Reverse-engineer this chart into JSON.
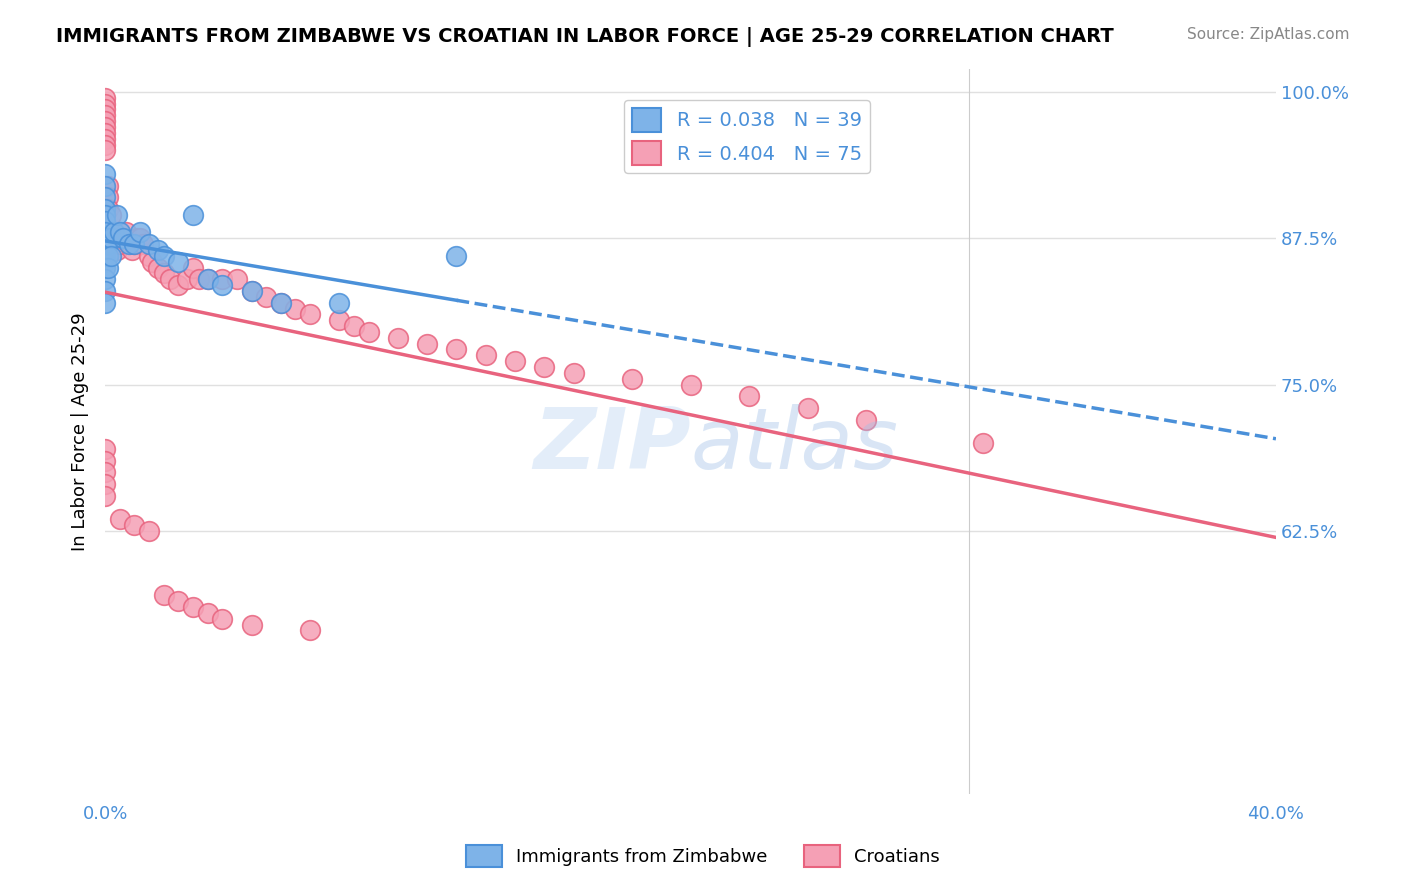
{
  "title": "IMMIGRANTS FROM ZIMBABWE VS CROATIAN IN LABOR FORCE | AGE 25-29 CORRELATION CHART",
  "source": "Source: ZipAtlas.com",
  "xlabel": "",
  "ylabel": "In Labor Force | Age 25-29",
  "legend_label1": "Immigrants from Zimbabwe",
  "legend_label2": "Croatians",
  "r1": 0.038,
  "n1": 39,
  "r2": 0.404,
  "n2": 75,
  "xlim": [
    0.0,
    0.4
  ],
  "ylim": [
    0.4,
    1.02
  ],
  "xticks": [
    0.0,
    0.1,
    0.2,
    0.3,
    0.4
  ],
  "xtick_labels": [
    "0.0%",
    "",
    "",
    "",
    "40.0%"
  ],
  "ytick_positions": [
    1.0,
    0.875,
    0.75,
    0.625
  ],
  "ytick_labels": [
    "100.0%",
    "87.5%",
    "75.0%",
    "62.5%"
  ],
  "color_blue": "#7eb3e8",
  "color_pink": "#f5a0b5",
  "line_blue": "#4a90d9",
  "line_pink": "#e8637e",
  "watermark": "ZIPatlas",
  "background_color": "#ffffff",
  "grid_color": "#e0e0e0",
  "blue_points_x": [
    0.0,
    0.0,
    0.0,
    0.0,
    0.0,
    0.0,
    0.0,
    0.0,
    0.0,
    0.0,
    0.0,
    0.0,
    0.0,
    0.0,
    0.0,
    0.001,
    0.001,
    0.001,
    0.001,
    0.002,
    0.002,
    0.003,
    0.004,
    0.005,
    0.006,
    0.008,
    0.01,
    0.012,
    0.015,
    0.018,
    0.02,
    0.025,
    0.03,
    0.035,
    0.04,
    0.05,
    0.06,
    0.08,
    0.12
  ],
  "blue_points_y": [
    0.93,
    0.92,
    0.91,
    0.9,
    0.895,
    0.89,
    0.88,
    0.87,
    0.865,
    0.86,
    0.855,
    0.85,
    0.84,
    0.83,
    0.82,
    0.875,
    0.87,
    0.86,
    0.85,
    0.875,
    0.86,
    0.88,
    0.895,
    0.88,
    0.875,
    0.87,
    0.87,
    0.88,
    0.87,
    0.865,
    0.86,
    0.855,
    0.895,
    0.84,
    0.835,
    0.83,
    0.82,
    0.82,
    0.86
  ],
  "pink_points_x": [
    0.0,
    0.0,
    0.0,
    0.0,
    0.0,
    0.0,
    0.0,
    0.0,
    0.0,
    0.0,
    0.001,
    0.001,
    0.001,
    0.002,
    0.002,
    0.003,
    0.003,
    0.004,
    0.005,
    0.006,
    0.007,
    0.008,
    0.009,
    0.01,
    0.011,
    0.012,
    0.013,
    0.015,
    0.016,
    0.018,
    0.02,
    0.022,
    0.025,
    0.028,
    0.03,
    0.032,
    0.035,
    0.04,
    0.045,
    0.05,
    0.055,
    0.06,
    0.065,
    0.07,
    0.08,
    0.085,
    0.09,
    0.1,
    0.11,
    0.12,
    0.13,
    0.14,
    0.15,
    0.16,
    0.18,
    0.2,
    0.22,
    0.24,
    0.26,
    0.3,
    0.0,
    0.0,
    0.0,
    0.0,
    0.0,
    0.005,
    0.01,
    0.015,
    0.02,
    0.025,
    0.03,
    0.035,
    0.04,
    0.05,
    0.07
  ],
  "pink_points_y": [
    0.995,
    0.99,
    0.985,
    0.98,
    0.975,
    0.97,
    0.965,
    0.96,
    0.955,
    0.95,
    0.92,
    0.91,
    0.9,
    0.895,
    0.88,
    0.875,
    0.87,
    0.865,
    0.87,
    0.875,
    0.88,
    0.87,
    0.865,
    0.87,
    0.875,
    0.875,
    0.87,
    0.86,
    0.855,
    0.85,
    0.845,
    0.84,
    0.835,
    0.84,
    0.85,
    0.84,
    0.84,
    0.84,
    0.84,
    0.83,
    0.825,
    0.82,
    0.815,
    0.81,
    0.805,
    0.8,
    0.795,
    0.79,
    0.785,
    0.78,
    0.775,
    0.77,
    0.765,
    0.76,
    0.755,
    0.75,
    0.74,
    0.73,
    0.72,
    0.7,
    0.695,
    0.685,
    0.675,
    0.665,
    0.655,
    0.635,
    0.63,
    0.625,
    0.57,
    0.565,
    0.56,
    0.555,
    0.55,
    0.545,
    0.54
  ]
}
